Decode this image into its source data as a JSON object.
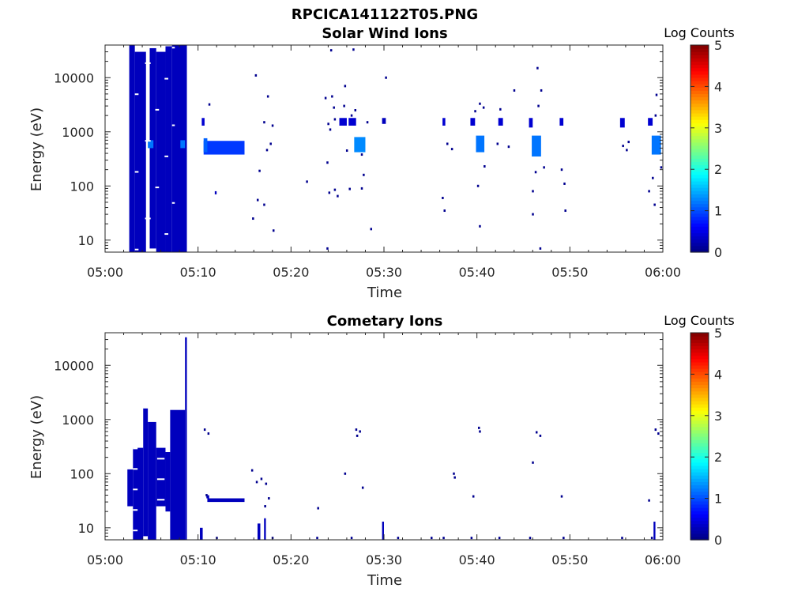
{
  "figure_title": "RPCICA141122T05.PNG",
  "colors": {
    "background": "#ffffff",
    "axes": "#262626",
    "data_dark_blue": "#00008f",
    "data_mid_blue": "#0a2bdc",
    "data_bright_blue": "#1d6cff"
  },
  "colormap": "jet",
  "chart_data": [
    {
      "type": "heatmap",
      "title": "Solar Wind Ions",
      "xlabel": "Time",
      "ylabel": "Energy (eV)",
      "x_ticks": [
        "05:00",
        "05:10",
        "05:20",
        "05:30",
        "05:40",
        "05:50",
        "06:00"
      ],
      "xlim_minutes": [
        0,
        60
      ],
      "y_scale": "log",
      "ylim": [
        6,
        40000
      ],
      "y_ticks": [
        10,
        100,
        1000,
        10000
      ],
      "y_tick_labels": [
        "10",
        "100",
        "1000",
        "10000"
      ],
      "colorbar": {
        "label": "Log Counts",
        "range": [
          0,
          5
        ],
        "ticks": [
          "0",
          "1",
          "2",
          "3",
          "4",
          "5"
        ]
      },
      "blocks": [
        {
          "t0": 2.6,
          "t1": 3.2,
          "e0": 6,
          "e1": 40000,
          "level": 0.3
        },
        {
          "t0": 3.2,
          "t1": 4.4,
          "e0": 6,
          "e1": 30000,
          "level": 0.3
        },
        {
          "t0": 4.8,
          "t1": 5.5,
          "e0": 7,
          "e1": 35000,
          "level": 0.3
        },
        {
          "t0": 5.5,
          "t1": 6.5,
          "e0": 6,
          "e1": 30000,
          "level": 0.3
        },
        {
          "t0": 6.5,
          "t1": 7.2,
          "e0": 6,
          "e1": 38000,
          "level": 0.3
        },
        {
          "t0": 7.2,
          "t1": 8.8,
          "e0": 6,
          "e1": 40000,
          "level": 0.3
        },
        {
          "t0": 4.6,
          "t1": 5.2,
          "e0": 500,
          "e1": 700,
          "level": 1.2
        },
        {
          "t0": 8.1,
          "t1": 8.6,
          "e0": 500,
          "e1": 700,
          "level": 1.2
        },
        {
          "t0": 10.6,
          "t1": 15.0,
          "e0": 380,
          "e1": 680,
          "level": 0.9
        },
        {
          "t0": 10.6,
          "t1": 11.0,
          "e0": 420,
          "e1": 760,
          "level": 1.1
        },
        {
          "t0": 10.4,
          "t1": 10.7,
          "e0": 1300,
          "e1": 1800,
          "level": 0.4
        },
        {
          "t0": 11.8,
          "t1": 12.0,
          "e0": 70,
          "e1": 80,
          "level": 0.3
        },
        {
          "t0": 26.8,
          "t1": 28.0,
          "e0": 420,
          "e1": 800,
          "level": 1.3
        },
        {
          "t0": 25.2,
          "t1": 26.0,
          "e0": 1300,
          "e1": 1800,
          "level": 0.4
        },
        {
          "t0": 39.9,
          "t1": 40.8,
          "e0": 420,
          "e1": 850,
          "level": 1.2
        },
        {
          "t0": 45.9,
          "t1": 46.9,
          "e0": 350,
          "e1": 850,
          "level": 1.2
        },
        {
          "t0": 58.8,
          "t1": 59.8,
          "e0": 380,
          "e1": 850,
          "level": 1.2
        },
        {
          "t0": 36.3,
          "t1": 36.6,
          "e0": 1300,
          "e1": 1800,
          "level": 0.4
        },
        {
          "t0": 39.3,
          "t1": 39.8,
          "e0": 1300,
          "e1": 1800,
          "level": 0.4
        },
        {
          "t0": 42.3,
          "t1": 42.8,
          "e0": 1300,
          "e1": 1800,
          "level": 0.4
        },
        {
          "t0": 45.6,
          "t1": 46.0,
          "e0": 1200,
          "e1": 1800,
          "level": 0.4
        },
        {
          "t0": 48.9,
          "t1": 49.3,
          "e0": 1300,
          "e1": 1800,
          "level": 0.4
        },
        {
          "t0": 55.4,
          "t1": 55.9,
          "e0": 1200,
          "e1": 1800,
          "level": 0.4
        },
        {
          "t0": 58.4,
          "t1": 58.9,
          "e0": 1300,
          "e1": 1800,
          "level": 0.4
        },
        {
          "t0": 29.8,
          "t1": 30.2,
          "e0": 1400,
          "e1": 1800,
          "level": 0.3
        },
        {
          "t0": 26.2,
          "t1": 27.0,
          "e0": 1300,
          "e1": 1800,
          "level": 0.4
        }
      ],
      "dots": [
        [
          11.2,
          3200
        ],
        [
          15.9,
          25
        ],
        [
          16.2,
          11000
        ],
        [
          16.4,
          55
        ],
        [
          16.6,
          190
        ],
        [
          17.1,
          1500
        ],
        [
          17.4,
          460
        ],
        [
          17.8,
          600
        ],
        [
          17.5,
          4500
        ],
        [
          18.0,
          1300
        ],
        [
          18.1,
          15
        ],
        [
          17.1,
          45
        ],
        [
          21.7,
          120
        ],
        [
          23.7,
          4200
        ],
        [
          24.0,
          1400
        ],
        [
          24.2,
          1100
        ],
        [
          24.4,
          4500
        ],
        [
          24.6,
          2800
        ],
        [
          23.9,
          270
        ],
        [
          24.1,
          75
        ],
        [
          25.0,
          65
        ],
        [
          24.7,
          85
        ],
        [
          23.9,
          7
        ],
        [
          24.7,
          1700
        ],
        [
          24.3,
          32000
        ],
        [
          25.8,
          7000
        ],
        [
          25.7,
          3000
        ],
        [
          26.0,
          450
        ],
        [
          26.5,
          2000
        ],
        [
          26.9,
          2500
        ],
        [
          26.3,
          88
        ],
        [
          26.7,
          33000
        ],
        [
          27.6,
          90
        ],
        [
          27.6,
          380
        ],
        [
          28.6,
          16
        ],
        [
          28.2,
          1500
        ],
        [
          27.8,
          160
        ],
        [
          30.2,
          10000
        ],
        [
          36.3,
          60
        ],
        [
          36.8,
          600
        ],
        [
          37.3,
          480
        ],
        [
          36.5,
          35
        ],
        [
          39.8,
          2400
        ],
        [
          40.3,
          3300
        ],
        [
          40.7,
          2800
        ],
        [
          40.1,
          100
        ],
        [
          40.3,
          18
        ],
        [
          40.8,
          230
        ],
        [
          42.5,
          2600
        ],
        [
          42.2,
          600
        ],
        [
          43.4,
          530
        ],
        [
          44.0,
          5800
        ],
        [
          46.0,
          30
        ],
        [
          46.3,
          180
        ],
        [
          46.6,
          3000
        ],
        [
          46.9,
          5800
        ],
        [
          46.8,
          7
        ],
        [
          46.0,
          80
        ],
        [
          47.2,
          220
        ],
        [
          49.1,
          200
        ],
        [
          49.4,
          110
        ],
        [
          49.5,
          35
        ],
        [
          55.7,
          550
        ],
        [
          56.1,
          460
        ],
        [
          56.3,
          650
        ],
        [
          58.5,
          80
        ],
        [
          58.9,
          140
        ],
        [
          59.1,
          45
        ],
        [
          59.2,
          2000
        ],
        [
          59.3,
          4800
        ],
        [
          59.8,
          220
        ],
        [
          46.5,
          15000
        ]
      ]
    },
    {
      "type": "heatmap",
      "title": "Cometary Ions",
      "xlabel": "Time",
      "ylabel": "Energy (eV)",
      "x_ticks": [
        "05:00",
        "05:10",
        "05:20",
        "05:30",
        "05:40",
        "05:50",
        "06:00"
      ],
      "xlim_minutes": [
        0,
        60
      ],
      "y_scale": "log",
      "ylim": [
        6,
        40000
      ],
      "y_ticks": [
        10,
        100,
        1000,
        10000
      ],
      "y_tick_labels": [
        "10",
        "100",
        "1000",
        "10000"
      ],
      "colorbar": {
        "label": "Log Counts",
        "range": [
          0,
          5
        ],
        "ticks": [
          "0",
          "1",
          "2",
          "3",
          "4",
          "5"
        ]
      },
      "blocks": [
        {
          "t0": 2.4,
          "t1": 3.0,
          "e0": 25,
          "e1": 120,
          "level": 0.3
        },
        {
          "t0": 3.0,
          "t1": 4.1,
          "e0": 6,
          "e1": 300,
          "level": 0.3
        },
        {
          "t0": 4.1,
          "t1": 4.6,
          "e0": 7,
          "e1": 1600,
          "level": 0.3
        },
        {
          "t0": 4.6,
          "t1": 5.5,
          "e0": 6,
          "e1": 900,
          "level": 0.3
        },
        {
          "t0": 5.5,
          "t1": 6.5,
          "e0": 25,
          "e1": 300,
          "level": 0.3
        },
        {
          "t0": 6.5,
          "t1": 7.0,
          "e0": 20,
          "e1": 250,
          "level": 0.3
        },
        {
          "t0": 7.0,
          "t1": 8.6,
          "e0": 6,
          "e1": 1500,
          "level": 0.3
        },
        {
          "t0": 8.6,
          "t1": 8.8,
          "e0": 6,
          "e1": 33000,
          "level": 0.3
        },
        {
          "t0": 11.0,
          "t1": 15.0,
          "e0": 30,
          "e1": 35,
          "level": 0.3
        },
        {
          "t0": 10.9,
          "t1": 11.2,
          "e0": 35,
          "e1": 40,
          "level": 0.3
        },
        {
          "t0": 10.2,
          "t1": 10.5,
          "e0": 6,
          "e1": 10,
          "level": 0.3
        },
        {
          "t0": 16.4,
          "t1": 16.7,
          "e0": 6,
          "e1": 12,
          "level": 0.3
        },
        {
          "t0": 17.1,
          "t1": 17.3,
          "e0": 6,
          "e1": 15,
          "level": 0.3
        },
        {
          "t0": 29.8,
          "t1": 30.0,
          "e0": 6,
          "e1": 13,
          "level": 0.3
        },
        {
          "t0": 59.0,
          "t1": 59.2,
          "e0": 6,
          "e1": 13,
          "level": 0.3
        }
      ],
      "dots": [
        [
          10.7,
          650
        ],
        [
          11.1,
          550
        ],
        [
          10.9,
          40
        ],
        [
          15.8,
          115
        ],
        [
          16.3,
          70
        ],
        [
          16.8,
          80
        ],
        [
          17.3,
          65
        ],
        [
          17.6,
          35
        ],
        [
          17.2,
          25
        ],
        [
          22.9,
          23
        ],
        [
          25.8,
          100
        ],
        [
          27.0,
          650
        ],
        [
          27.1,
          500
        ],
        [
          27.4,
          600
        ],
        [
          27.7,
          55
        ],
        [
          26.5,
          6.5
        ],
        [
          22.8,
          6.5
        ],
        [
          31.5,
          6.5
        ],
        [
          36.4,
          6.5
        ],
        [
          37.5,
          100
        ],
        [
          37.6,
          85
        ],
        [
          39.4,
          6.5
        ],
        [
          39.6,
          38
        ],
        [
          40.2,
          700
        ],
        [
          40.3,
          600
        ],
        [
          42.4,
          6.5
        ],
        [
          45.7,
          6.5
        ],
        [
          46.0,
          160
        ],
        [
          46.4,
          580
        ],
        [
          46.8,
          500
        ],
        [
          49.1,
          38
        ],
        [
          49.3,
          6.5
        ],
        [
          55.6,
          6.5
        ],
        [
          58.5,
          32
        ],
        [
          58.8,
          6.5
        ],
        [
          59.2,
          650
        ],
        [
          59.5,
          550
        ],
        [
          18.0,
          6.5
        ],
        [
          12.0,
          6.5
        ],
        [
          35.1,
          6.5
        ]
      ]
    }
  ]
}
